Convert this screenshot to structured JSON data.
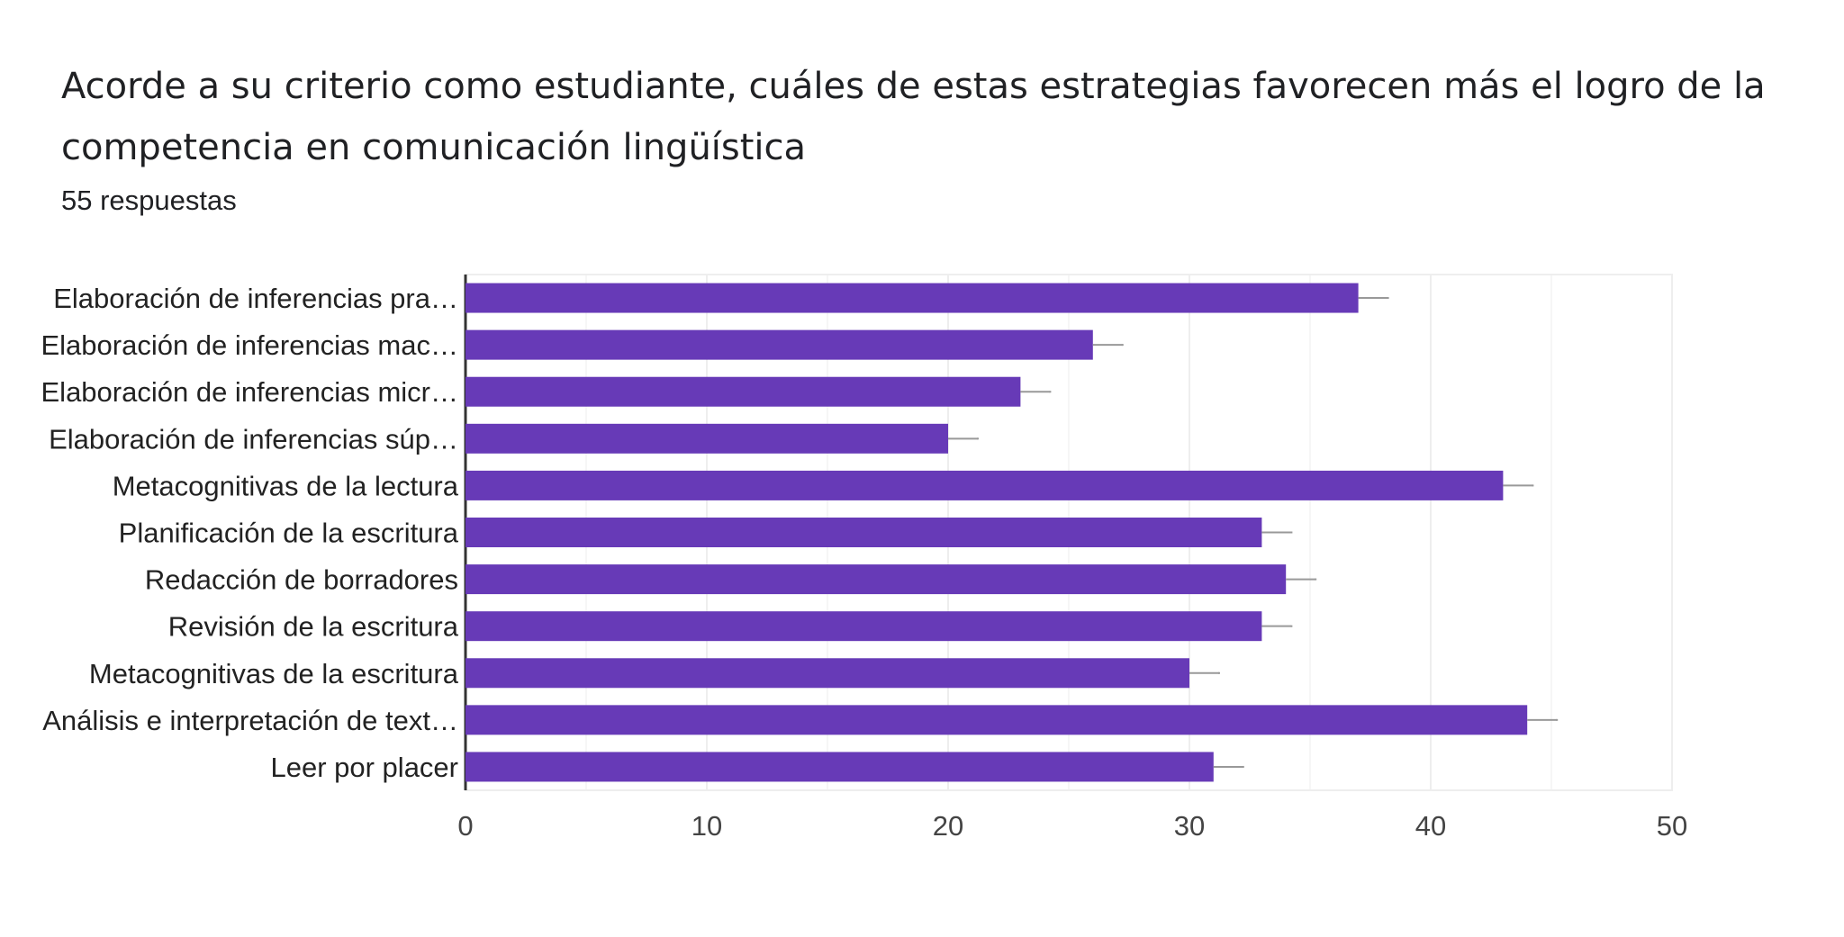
{
  "header": {
    "title": "Acorde a su criterio como estudiante, cuáles de estas estrategias favorecen más el logro de la competencia en comunicación lingüística",
    "response_count": "55 respuestas"
  },
  "colors": {
    "bar": "#673ab7",
    "error_bar": "#999999",
    "grid": "#eeeeee",
    "axis": "#333333",
    "text": "#222222"
  },
  "chart_data": {
    "type": "bar",
    "orientation": "horizontal",
    "categories": [
      "Elaboración de inferencias pra…",
      "Elaboración de inferencias mac…",
      "Elaboración de inferencias micr…",
      "Elaboración de inferencias súp…",
      "Metacognitivas de la lectura",
      "Planificación de la escritura",
      "Redacción de borradores",
      "Revisión de la escritura",
      "Metacognitivas de la escritura",
      "Análisis e interpretación de text…",
      "Leer por placer"
    ],
    "values": [
      37,
      26,
      23,
      20,
      43,
      33,
      34,
      33,
      30,
      44,
      31
    ],
    "error_bars": true,
    "xlim": [
      0,
      50
    ],
    "xticks": [
      0,
      10,
      20,
      30,
      40,
      50
    ],
    "grid": true,
    "xlabel": "",
    "ylabel": ""
  }
}
